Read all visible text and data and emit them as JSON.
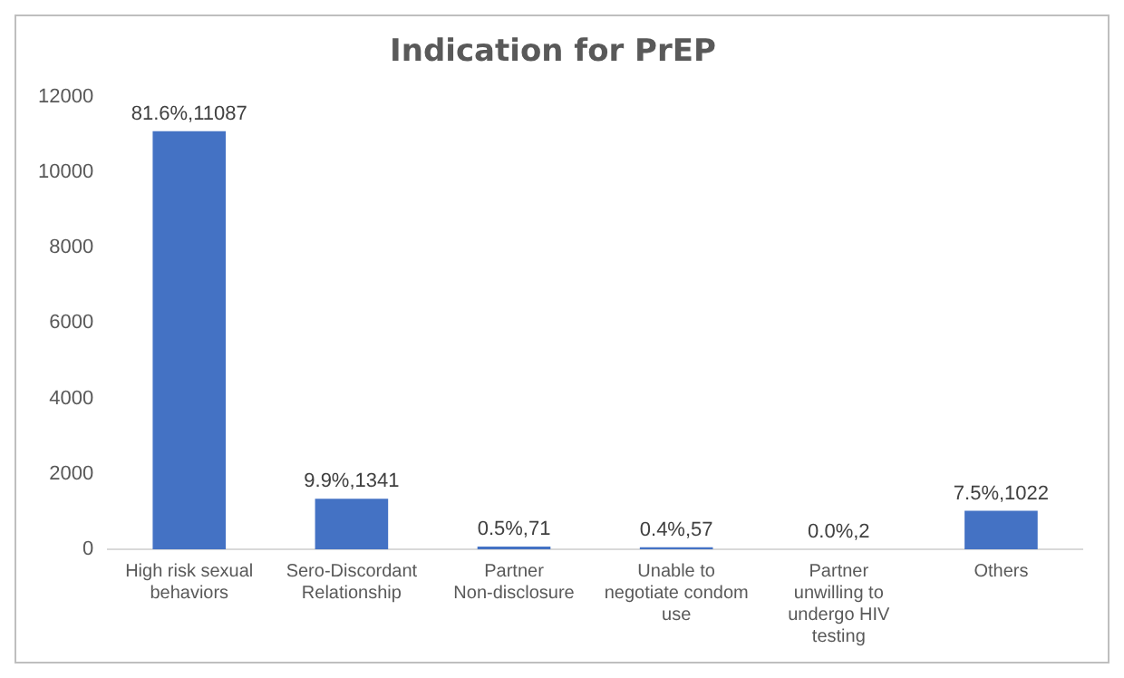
{
  "chart_data": {
    "type": "bar",
    "title": "Indication for PrEP",
    "categories": [
      "High risk sexual behaviors",
      "Sero-Discordant Relationship",
      "Partner Non-disclosure",
      "Unable to negotiate condom use",
      "Partner unwilling to undergo HIV testing",
      "Others"
    ],
    "values": [
      11087,
      1341,
      71,
      57,
      2,
      1022
    ],
    "value_labels": [
      "81.6%,11087",
      "9.9%,1341",
      "0.5%,71",
      "0.4%,57",
      "0.0%,2",
      "7.5%,1022"
    ],
    "color": "#4472c4",
    "ylim": [
      0,
      12000
    ],
    "yticks": [
      0,
      2000,
      4000,
      6000,
      8000,
      10000,
      12000
    ],
    "grid": false,
    "legend": false
  }
}
